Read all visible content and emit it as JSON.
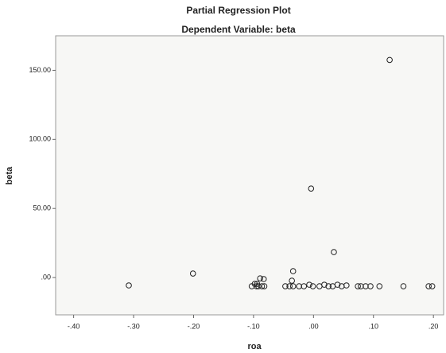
{
  "chart_data": {
    "type": "scatter",
    "title": "Partial Regression Plot",
    "subtitle": "Dependent Variable: beta",
    "x_label": "roa",
    "y_label": "beta",
    "color": "#222222",
    "xlim": [
      -0.43,
      0.217
    ],
    "ylim": [
      -27,
      175
    ],
    "xticks": [
      {
        "value": -0.4,
        "label": "-.40"
      },
      {
        "value": -0.3,
        "label": "-.30"
      },
      {
        "value": -0.2,
        "label": "-.20"
      },
      {
        "value": -0.1,
        "label": "-.10"
      },
      {
        "value": 0,
        "label": ".00"
      },
      {
        "value": 0.1,
        "label": ".10"
      },
      {
        "value": 0.2,
        "label": ".20"
      }
    ],
    "yticks": [
      {
        "value": 0,
        "label": ".00"
      },
      {
        "value": 50,
        "label": "50.00"
      },
      {
        "value": 100,
        "label": "100.00"
      },
      {
        "value": 150,
        "label": "150.00"
      }
    ],
    "x": [
      0.127,
      -0.004,
      0.034,
      -0.201,
      -0.308,
      -0.034,
      -0.089,
      -0.083,
      -0.036,
      -0.103,
      -0.095,
      -0.098,
      -0.092,
      -0.094,
      -0.086,
      -0.082,
      -0.047,
      -0.04,
      -0.034,
      -0.024,
      -0.016,
      -0.007,
      -0.001,
      0.01,
      0.018,
      0.025,
      0.032,
      0.04,
      0.047,
      0.055,
      0.074,
      0.079,
      0.087,
      0.095,
      0.11,
      0.15,
      0.192,
      0.198
    ],
    "y": [
      157.5,
      64.4,
      18.4,
      2.9,
      -5.7,
      4.6,
      -0.6,
      -1.1,
      -2.3,
      -6.3,
      -6.3,
      -4.6,
      -6.3,
      -4.6,
      -6.3,
      -6.3,
      -6.3,
      -6.3,
      -6.3,
      -6.3,
      -6.3,
      -5.2,
      -6.3,
      -6.3,
      -5.2,
      -6.3,
      -6.3,
      -5.2,
      -6.3,
      -5.7,
      -6.3,
      -6.3,
      -6.3,
      -6.3,
      -6.3,
      -6.3,
      -6.3,
      -6.3
    ]
  }
}
